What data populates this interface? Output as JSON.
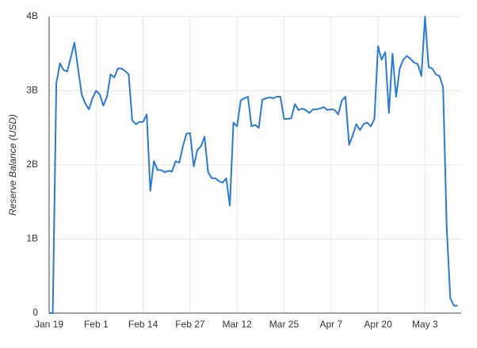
{
  "chart_data": {
    "type": "line",
    "ylabel": "Reserve Balance (USD)",
    "x": [
      "Jan 19",
      "Jan 20",
      "Jan 21",
      "Jan 22",
      "Jan 23",
      "Jan 24",
      "Jan 25",
      "Jan 26",
      "Jan 27",
      "Jan 28",
      "Jan 29",
      "Jan 30",
      "Jan 31",
      "Feb 1",
      "Feb 2",
      "Feb 3",
      "Feb 4",
      "Feb 5",
      "Feb 6",
      "Feb 7",
      "Feb 8",
      "Feb 9",
      "Feb 10",
      "Feb 11",
      "Feb 12",
      "Feb 13",
      "Feb 14",
      "Feb 15",
      "Feb 16",
      "Feb 17",
      "Feb 18",
      "Feb 19",
      "Feb 20",
      "Feb 21",
      "Feb 22",
      "Feb 23",
      "Feb 24",
      "Feb 25",
      "Feb 26",
      "Feb 27",
      "Feb 28",
      "Mar 1",
      "Mar 2",
      "Mar 3",
      "Mar 4",
      "Mar 5",
      "Mar 6",
      "Mar 7",
      "Mar 8",
      "Mar 9",
      "Mar 10",
      "Mar 11",
      "Mar 12",
      "Mar 13",
      "Mar 14",
      "Mar 15",
      "Mar 16",
      "Mar 17",
      "Mar 18",
      "Mar 19",
      "Mar 20",
      "Mar 21",
      "Mar 22",
      "Mar 23",
      "Mar 24",
      "Mar 25",
      "Mar 26",
      "Mar 27",
      "Mar 28",
      "Mar 29",
      "Mar 30",
      "Mar 31",
      "Apr 1",
      "Apr 2",
      "Apr 3",
      "Apr 4",
      "Apr 5",
      "Apr 6",
      "Apr 7",
      "Apr 8",
      "Apr 9",
      "Apr 10",
      "Apr 11",
      "Apr 12",
      "Apr 13",
      "Apr 14",
      "Apr 15",
      "Apr 16",
      "Apr 17",
      "Apr 18",
      "Apr 19",
      "Apr 20",
      "Apr 21",
      "Apr 22",
      "Apr 23",
      "Apr 24",
      "Apr 25",
      "Apr 26",
      "Apr 27",
      "Apr 28",
      "Apr 29",
      "Apr 30",
      "May 1",
      "May 2",
      "May 3",
      "May 4",
      "May 5",
      "May 6",
      "May 7",
      "May 8",
      "May 9",
      "May 10",
      "May 11",
      "May 12"
    ],
    "series": [
      {
        "color": "#2a7bd1",
        "values": [
          0,
          0,
          3100000000.0,
          3370000000.0,
          3280000000.0,
          3260000000.0,
          3450000000.0,
          3650000000.0,
          3300000000.0,
          2950000000.0,
          2830000000.0,
          2750000000.0,
          2900000000.0,
          3000000000.0,
          2950000000.0,
          2800000000.0,
          2920000000.0,
          3220000000.0,
          3180000000.0,
          3300000000.0,
          3300000000.0,
          3270000000.0,
          3220000000.0,
          2600000000.0,
          2550000000.0,
          2580000000.0,
          2580000000.0,
          2680000000.0,
          1650000000.0,
          2050000000.0,
          1930000000.0,
          1930000000.0,
          1900000000.0,
          1920000000.0,
          1910000000.0,
          2050000000.0,
          2030000000.0,
          2250000000.0,
          2420000000.0,
          2430000000.0,
          1980000000.0,
          2200000000.0,
          2250000000.0,
          2380000000.0,
          1900000000.0,
          1820000000.0,
          1820000000.0,
          1780000000.0,
          1760000000.0,
          1820000000.0,
          1450000000.0,
          2570000000.0,
          2520000000.0,
          2870000000.0,
          2900000000.0,
          2920000000.0,
          2520000000.0,
          2540000000.0,
          2500000000.0,
          2880000000.0,
          2900000000.0,
          2910000000.0,
          2900000000.0,
          2920000000.0,
          2920000000.0,
          2620000000.0,
          2620000000.0,
          2630000000.0,
          2820000000.0,
          2740000000.0,
          2760000000.0,
          2740000000.0,
          2700000000.0,
          2750000000.0,
          2750000000.0,
          2760000000.0,
          2780000000.0,
          2740000000.0,
          2750000000.0,
          2740000000.0,
          2680000000.0,
          2870000000.0,
          2920000000.0,
          2270000000.0,
          2400000000.0,
          2550000000.0,
          2470000000.0,
          2550000000.0,
          2570000000.0,
          2520000000.0,
          2620000000.0,
          3600000000.0,
          3420000000.0,
          3520000000.0,
          2700000000.0,
          3500000000.0,
          2920000000.0,
          3300000000.0,
          3420000000.0,
          3470000000.0,
          3430000000.0,
          3380000000.0,
          3360000000.0,
          3200000000.0,
          4000000000.0,
          3320000000.0,
          3300000000.0,
          3220000000.0,
          3200000000.0,
          3050000000.0,
          1150000000.0,
          200000000.0,
          100000000.0,
          100000000.0
        ]
      }
    ],
    "xlim": [
      "Jan 19",
      "May 13"
    ],
    "xticks": [
      "Jan 19",
      "Feb 1",
      "Feb 14",
      "Feb 27",
      "Mar 12",
      "Mar 25",
      "Apr 7",
      "Apr 20",
      "May 3"
    ],
    "ylim": [
      0,
      4000000000.0
    ],
    "yticks": [
      0,
      {
        "value": 1000000000.0,
        "label": "1B"
      },
      {
        "value": 2000000000.0,
        "label": "2B"
      },
      {
        "value": 3000000000.0,
        "label": "3B"
      },
      {
        "value": 4000000000.0,
        "label": "4B"
      }
    ],
    "grid": true
  }
}
